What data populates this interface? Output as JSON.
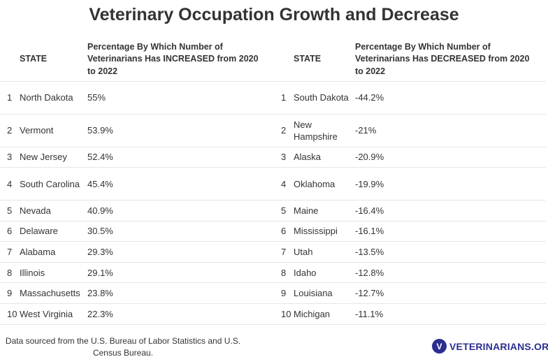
{
  "title": "Veterinary Occupation Growth and Decrease",
  "table": {
    "headers": {
      "state_left": "STATE",
      "increase": "Percentage By Which Number of Veterinarians Has INCREASED from 2020 to 2022",
      "state_right": "STATE",
      "decrease": "Percentage By Which Number of Veterinarians Has DECREASED from 2020 to 2022"
    },
    "rows": [
      {
        "rank_left": "1",
        "state_left": "North Dakota",
        "increase": "55%",
        "rank_right": "1",
        "state_right": "South Dakota",
        "decrease": "-44.2%"
      },
      {
        "rank_left": "2",
        "state_left": "Vermont",
        "increase": "53.9%",
        "rank_right": "2",
        "state_right": "New Hampshire",
        "decrease": "-21%"
      },
      {
        "rank_left": "3",
        "state_left": "New Jersey",
        "increase": "52.4%",
        "rank_right": "3",
        "state_right": "Alaska",
        "decrease": "-20.9%"
      },
      {
        "rank_left": "4",
        "state_left": "South Carolina",
        "increase": "45.4%",
        "rank_right": "4",
        "state_right": "Oklahoma",
        "decrease": "-19.9%"
      },
      {
        "rank_left": "5",
        "state_left": "Nevada",
        "increase": "40.9%",
        "rank_right": "5",
        "state_right": "Maine",
        "decrease": "-16.4%"
      },
      {
        "rank_left": "6",
        "state_left": "Delaware",
        "increase": "30.5%",
        "rank_right": "6",
        "state_right": "Mississippi",
        "decrease": "-16.1%"
      },
      {
        "rank_left": "7",
        "state_left": "Alabama",
        "increase": "29.3%",
        "rank_right": "7",
        "state_right": "Utah",
        "decrease": "-13.5%"
      },
      {
        "rank_left": "8",
        "state_left": "Illinois",
        "increase": "29.1%",
        "rank_right": "8",
        "state_right": "Idaho",
        "decrease": "-12.8%"
      },
      {
        "rank_left": "9",
        "state_left": "Massachusetts",
        "increase": "23.8%",
        "rank_right": "9",
        "state_right": "Louisiana",
        "decrease": "-12.7%"
      },
      {
        "rank_left": "10",
        "state_left": "West Virginia",
        "increase": "22.3%",
        "rank_right": "10",
        "state_right": "Michigan",
        "decrease": "-11.1%"
      }
    ]
  },
  "footer": {
    "source_note": "Data sourced from the U.S. Bureau of Labor Statistics and U.S. Census Bureau.",
    "brand_text": "VETERINARIANS.ORG",
    "brand_color": "#2b2f8f"
  }
}
